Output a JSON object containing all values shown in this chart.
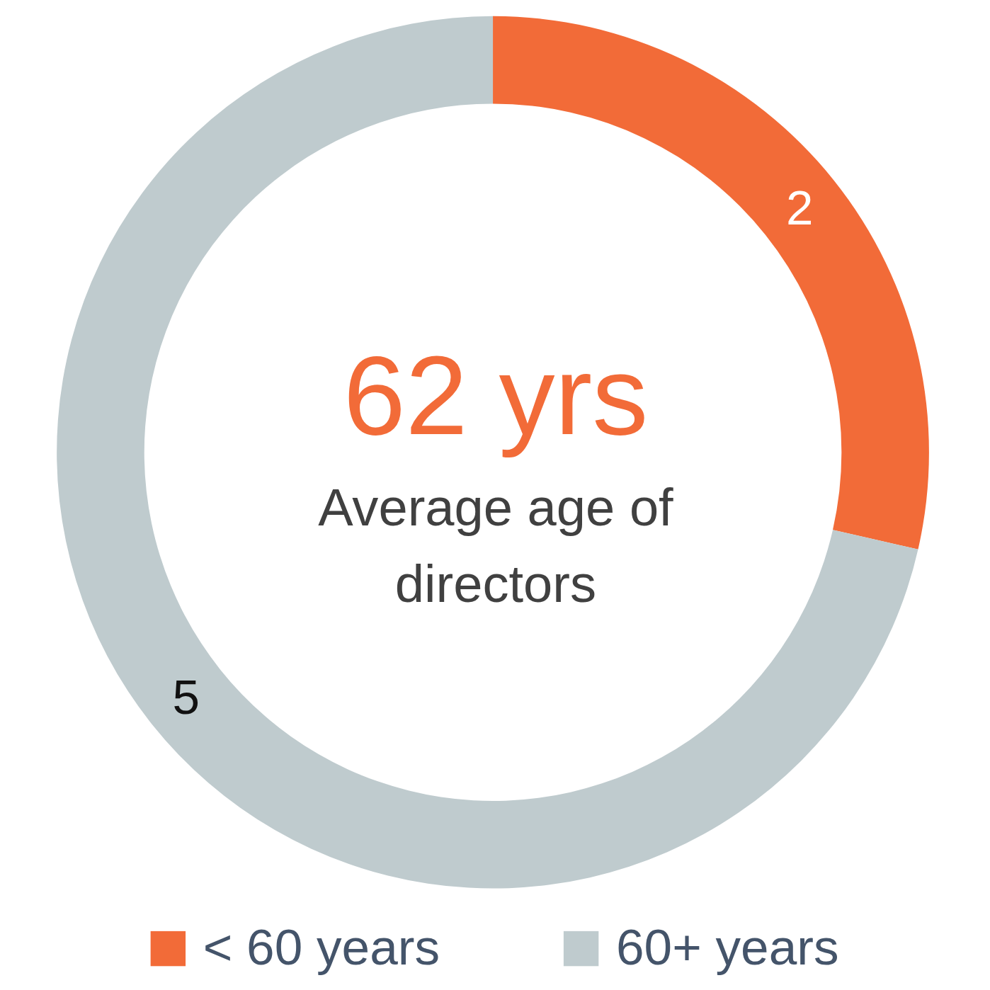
{
  "chart_data": {
    "type": "donut",
    "categories": [
      "< 60 years",
      "60+ years"
    ],
    "values": [
      2,
      5
    ],
    "colors": [
      "#f26b38",
      "#bfcbce"
    ],
    "data_labels": true,
    "legend": "bottom",
    "annotations": [
      "62 yrs",
      "Average age of directors"
    ]
  }
}
